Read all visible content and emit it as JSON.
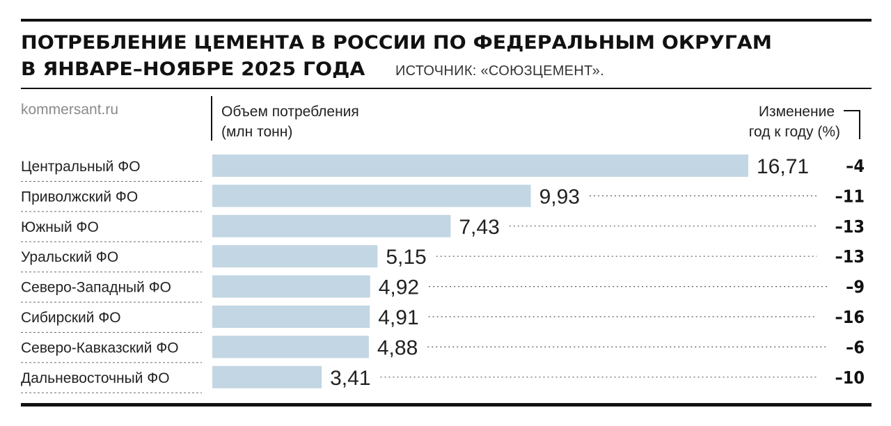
{
  "title": {
    "line1": "ПОТРЕБЛЕНИЕ ЦЕМЕНТА В РОССИИ ПО ФЕДЕРАЛЬНЫМ ОКРУГАМ",
    "line2": "В ЯНВАРЕ–НОЯБРЕ 2025 ГОДА",
    "source": "ИСТОЧНИК: «СОЮЗЦЕМЕНТ»."
  },
  "site": "kommersant.ru",
  "headers": {
    "volume_line1": "Объем потребления",
    "volume_line2": "(млн тонн)",
    "change_line1": "Изменение",
    "change_line2": "год к году (%)"
  },
  "colors": {
    "bar": "#c2d6e3",
    "text": "#1a1a1a",
    "rule": "#111111"
  },
  "chart_data": {
    "type": "bar",
    "orientation": "horizontal",
    "categories": [
      "Центральный ФО",
      "Приволжский ФО",
      "Южный ФО",
      "Уральский ФО",
      "Северо-Западный ФО",
      "Сибирский ФО",
      "Северо-Кавказский ФО",
      "Дальневосточный ФО"
    ],
    "values": [
      16.71,
      9.93,
      7.43,
      5.15,
      4.92,
      4.91,
      4.88,
      3.41
    ],
    "value_labels": [
      "16,71",
      "9,93",
      "7,43",
      "5,15",
      "4,92",
      "4,91",
      "4,88",
      "3,41"
    ],
    "change": [
      -4,
      -11,
      -13,
      -13,
      -9,
      -16,
      -6,
      -10
    ],
    "change_labels": [
      "–4",
      "–11",
      "–13",
      "–13",
      "–9",
      "–16",
      "–6",
      "–10"
    ],
    "xlim": [
      0,
      16.71
    ],
    "grid": false
  }
}
